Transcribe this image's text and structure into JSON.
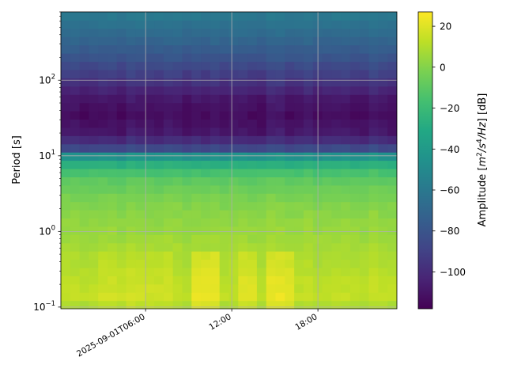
{
  "chart_data": {
    "type": "heatmap",
    "title": "",
    "xlabel": "",
    "ylabel": "Period [s]",
    "colorbar_label_parts": [
      "Amplitude [",
      "m",
      "2",
      "/s",
      "4",
      "/Hz",
      "] [dB]"
    ],
    "colorbar_label": "Amplitude [m^2/s^4/Hz] [dB]",
    "colormap": "viridis",
    "x_scale": "time",
    "x_range_hours": [
      0.1,
      23.5
    ],
    "x_ticks": [
      {
        "hour": 6,
        "label": "2025-09-01T06:00"
      },
      {
        "hour": 12,
        "label": "12:00"
      },
      {
        "hour": 18,
        "label": "18:00"
      }
    ],
    "y_scale": "log",
    "y_range": [
      0.095,
      800
    ],
    "y_ticks": [
      {
        "value": 0.1,
        "base": "10",
        "exp": "−1"
      },
      {
        "value": 1,
        "base": "10",
        "exp": "0"
      },
      {
        "value": 10,
        "base": "10",
        "exp": "1"
      },
      {
        "value": 100,
        "base": "10",
        "exp": "2"
      }
    ],
    "colorbar_range": [
      -118,
      27
    ],
    "colorbar_ticks": [
      {
        "value": 20,
        "label": "20"
      },
      {
        "value": 0,
        "label": "0"
      },
      {
        "value": -20,
        "label": "−20"
      },
      {
        "value": -40,
        "label": "−40"
      },
      {
        "value": -60,
        "label": "−60"
      },
      {
        "value": -80,
        "label": "−80"
      },
      {
        "value": -100,
        "label": "−100"
      }
    ],
    "grid": true,
    "period_profile_db": [
      {
        "period": 0.1,
        "db": 8
      },
      {
        "period": 0.13,
        "db": 14
      },
      {
        "period": 0.2,
        "db": 13
      },
      {
        "period": 0.35,
        "db": 10
      },
      {
        "period": 0.6,
        "db": 8
      },
      {
        "period": 1.0,
        "db": 5
      },
      {
        "period": 2.0,
        "db": 1
      },
      {
        "period": 3.0,
        "db": -3
      },
      {
        "period": 5.0,
        "db": -10
      },
      {
        "period": 7.0,
        "db": -20
      },
      {
        "period": 10.0,
        "db": -45
      },
      {
        "period": 13.0,
        "db": -90
      },
      {
        "period": 20.0,
        "db": -108
      },
      {
        "period": 35.0,
        "db": -113
      },
      {
        "period": 60.0,
        "db": -108
      },
      {
        "period": 100.0,
        "db": -95
      },
      {
        "period": 200.0,
        "db": -80
      },
      {
        "period": 400.0,
        "db": -68
      },
      {
        "period": 800.0,
        "db": -58
      }
    ],
    "time_bursts": [
      {
        "hour_start": 2.5,
        "hour_end": 8.0,
        "db_offset": 3
      },
      {
        "hour_start": 9.0,
        "hour_end": 11.0,
        "db_offset": 9
      },
      {
        "hour_start": 12.3,
        "hour_end": 13.8,
        "db_offset": 7
      },
      {
        "hour_start": 14.6,
        "hour_end": 16.2,
        "db_offset": 8
      }
    ]
  }
}
